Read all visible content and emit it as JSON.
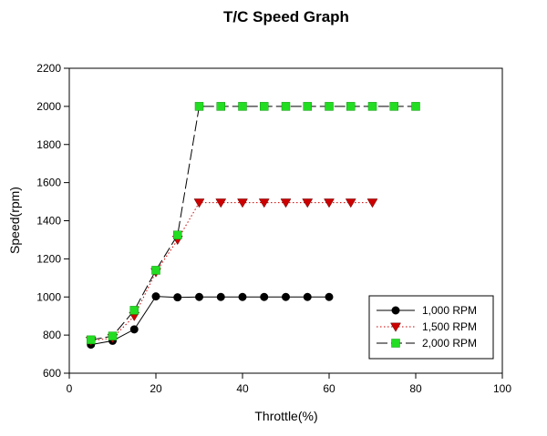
{
  "chart_data": {
    "type": "line",
    "title": "T/C Speed Graph",
    "xlabel": "Throttle(%)",
    "ylabel": "Speed(rpm)",
    "xlim": [
      0,
      100
    ],
    "ylim": [
      600,
      2200
    ],
    "xticks": [
      0,
      20,
      40,
      60,
      80,
      100
    ],
    "yticks": [
      600,
      800,
      1000,
      1200,
      1400,
      1600,
      1800,
      2000,
      2200
    ],
    "grid": false,
    "legend_position": "lower-right",
    "series": [
      {
        "name": "1,000 RPM",
        "color": "#000000",
        "line_style": "solid",
        "marker": "circle",
        "x": [
          5,
          10,
          15,
          20,
          25,
          30,
          35,
          40,
          45,
          50,
          55,
          60
        ],
        "y": [
          750,
          770,
          830,
          1003,
          998,
          1000,
          1000,
          1000,
          1000,
          1000,
          1000,
          1000
        ]
      },
      {
        "name": "1,500 RPM",
        "color": "#cc0000",
        "line_style": "dotted",
        "marker": "triangle-down",
        "x": [
          5,
          10,
          15,
          20,
          25,
          30,
          35,
          40,
          45,
          50,
          55,
          60,
          65,
          70
        ],
        "y": [
          770,
          785,
          900,
          1130,
          1300,
          1495,
          1495,
          1495,
          1495,
          1495,
          1495,
          1495,
          1495,
          1495
        ]
      },
      {
        "name": "2,000 RPM",
        "color": "#22dd22",
        "line_style": "long-dash",
        "marker": "square",
        "x": [
          5,
          10,
          15,
          20,
          25,
          30,
          35,
          40,
          45,
          50,
          55,
          60,
          65,
          70,
          75,
          80
        ],
        "y": [
          775,
          795,
          930,
          1140,
          1325,
          2000,
          2000,
          2000,
          2000,
          2000,
          2000,
          2000,
          2000,
          2000,
          2000,
          2000
        ]
      }
    ]
  }
}
